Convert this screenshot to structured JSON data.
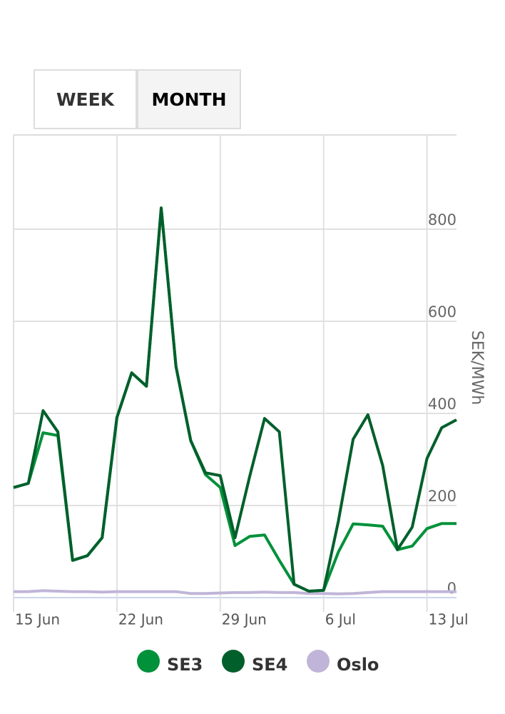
{
  "ui": {
    "buttons": [
      "WEEK",
      "MONTH"
    ]
  },
  "chart_data": {
    "type": "line",
    "y_label": "SEK/MWh",
    "categories": [
      "15 Jun",
      null,
      null,
      null,
      null,
      null,
      null,
      "22 Jun",
      null,
      null,
      null,
      null,
      null,
      null,
      "29 Jun",
      null,
      null,
      null,
      null,
      null,
      null,
      "6 Jul",
      null,
      null,
      null,
      null,
      null,
      null,
      "13 Jul",
      null,
      null
    ],
    "series": [
      {
        "name": "SE3",
        "color": "#00913a",
        "values": [
          239,
          248,
          358,
          352,
          81,
          91,
          130,
          391,
          488,
          459,
          846,
          502,
          341,
          267,
          239,
          113,
          133,
          136,
          81,
          29,
          14,
          16,
          99,
          160,
          158,
          155,
          104,
          112,
          150,
          161,
          161
        ]
      },
      {
        "name": "SE4",
        "color": "#005f2b",
        "values": [
          239,
          248,
          406,
          360,
          81,
          91,
          130,
          391,
          488,
          459,
          846,
          502,
          341,
          271,
          265,
          130,
          264,
          389,
          360,
          29,
          14,
          16,
          166,
          344,
          397,
          287,
          104,
          153,
          302,
          369,
          386
        ]
      },
      {
        "name": "Oslo",
        "color": "#c0b5d8",
        "values": [
          13,
          13,
          15,
          14,
          13,
          13,
          12,
          13,
          13,
          13,
          13,
          13,
          9,
          9,
          10,
          11,
          11,
          12,
          11,
          11,
          9,
          9,
          8,
          9,
          11,
          13,
          13,
          13,
          13,
          13,
          13
        ]
      }
    ],
    "ylim": [
      0,
      1000
    ],
    "yticks": [
      0,
      200,
      400,
      600,
      800
    ],
    "grid": true
  }
}
